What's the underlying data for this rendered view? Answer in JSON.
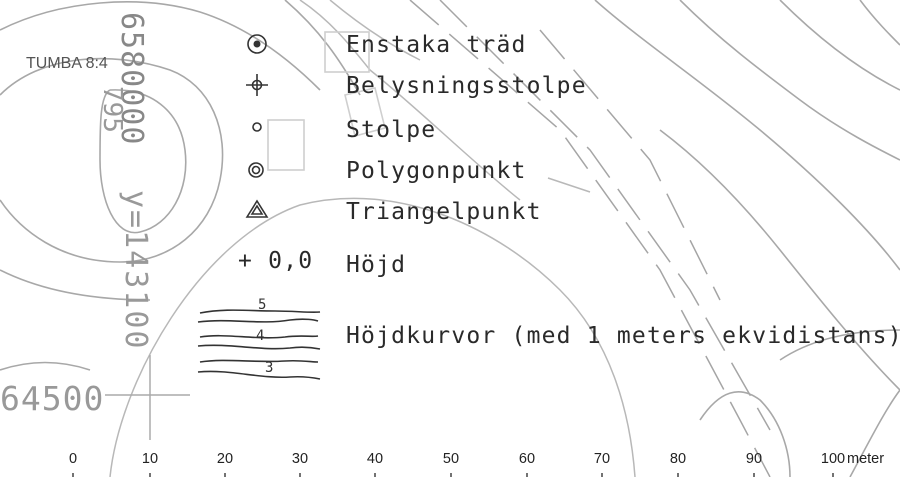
{
  "map": {
    "place_label": "TUMBA 8:4",
    "grid_x_label": "6580000",
    "grid_y_label": "y=143100",
    "grid_corner_label": "64500",
    "stray_label": "795"
  },
  "legend": {
    "items": [
      {
        "symbol": "enstaka-trad",
        "label": "Enstaka träd"
      },
      {
        "symbol": "belysningsstolpe",
        "label": "Belysningsstolpe"
      },
      {
        "symbol": "stolpe",
        "label": "Stolpe"
      },
      {
        "symbol": "polygonpunkt",
        "label": "Polygonpunkt"
      },
      {
        "symbol": "triangelpunkt",
        "label": "Triangelpunkt"
      },
      {
        "symbol": "hojd",
        "symbol_text": "+ 0,0",
        "label": "Höjd"
      },
      {
        "symbol": "hojdkurvor",
        "label": "Höjdkurvor (med 1 meters ekvidistans)"
      }
    ],
    "contour_sample_labels": [
      "5",
      "4",
      "3"
    ]
  },
  "scale_bar": {
    "ticks": [
      "0",
      "10",
      "20",
      "30",
      "40",
      "50",
      "60",
      "70",
      "80",
      "90",
      "100"
    ],
    "unit": "meter"
  }
}
